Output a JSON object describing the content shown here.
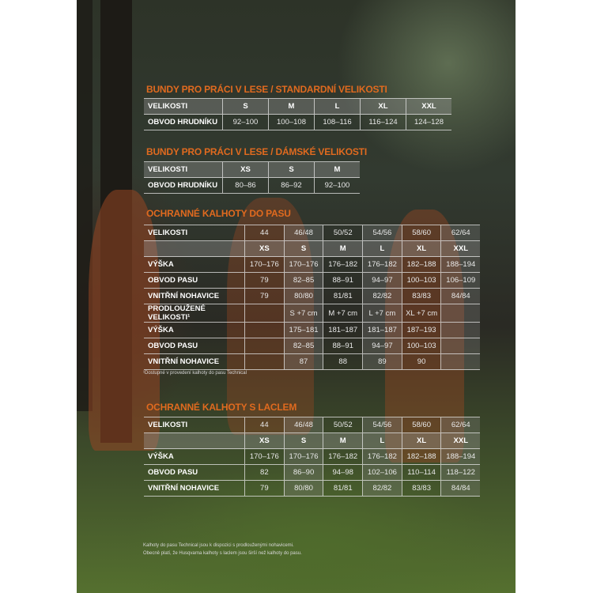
{
  "tables": [
    {
      "title": "BUNDY PRO PRÁCI V LESE / STANDARDNÍ VELIKOSTI",
      "rows": [
        [
          "VELIKOSTI",
          "S",
          "M",
          "L",
          "XL",
          "XXL"
        ],
        [
          "OBVOD HRUDNÍKU",
          "92–100",
          "100–108",
          "108–116",
          "116–124",
          "124–128"
        ]
      ]
    },
    {
      "title": "BUNDY PRO PRÁCI V LESE / DÁMSKÉ VELIKOSTI",
      "rows": [
        [
          "VELIKOSTI",
          "XS",
          "S",
          "M"
        ],
        [
          "OBVOD HRUDNÍKU",
          "80–86",
          "86–92",
          "92–100"
        ]
      ]
    },
    {
      "title": "OCHRANNÉ KALHOTY DO PASU",
      "rows": [
        [
          "VELIKOSTI",
          "44",
          "46/48",
          "50/52",
          "54/56",
          "58/60",
          "62/64"
        ],
        [
          "",
          "XS",
          "S",
          "M",
          "L",
          "XL",
          "XXL"
        ],
        [
          "VÝŠKA",
          "170–176",
          "170–176",
          "176–182",
          "176–182",
          "182–188",
          "188–194"
        ],
        [
          "OBVOD PASU",
          "79",
          "82–85",
          "88–91",
          "94–97",
          "100–103",
          "106–109"
        ],
        [
          "VNITŘNÍ NOHAVICE",
          "79",
          "80/80",
          "81/81",
          "82/82",
          "83/83",
          "84/84"
        ],
        [
          "PRODLOUŽENÉ VELIKOSTI¹",
          "",
          "S +7 cm",
          "M +7 cm",
          "L +7 cm",
          "XL +7 cm",
          ""
        ],
        [
          "VÝŠKA",
          "",
          "175–181",
          "181–187",
          "181–187",
          "187–193",
          ""
        ],
        [
          "OBVOD PASU",
          "",
          "82–85",
          "88–91",
          "94–97",
          "100–103",
          ""
        ],
        [
          "VNITŘNÍ NOHAVICE",
          "",
          "87",
          "88",
          "89",
          "90",
          ""
        ]
      ],
      "footnote": "¹Dostupné v provedení kalhoty do pasu Technical"
    },
    {
      "title": "OCHRANNÉ KALHOTY S LACLEM",
      "rows": [
        [
          "VELIKOSTI",
          "44",
          "46/48",
          "50/52",
          "54/56",
          "58/60",
          "62/64"
        ],
        [
          "",
          "XS",
          "S",
          "M",
          "L",
          "XL",
          "XXL"
        ],
        [
          "VÝŠKA",
          "170–176",
          "170–176",
          "176–182",
          "176–182",
          "182–188",
          "188–194"
        ],
        [
          "OBVOD PASU",
          "82",
          "86–90",
          "94–98",
          "102–106",
          "110–114",
          "118–122"
        ],
        [
          "VNITŘNÍ NOHAVICE",
          "79",
          "80/80",
          "81/81",
          "82/82",
          "83/83",
          "84/84"
        ]
      ]
    }
  ],
  "notes": [
    "Kalhoty do pasu Technical jsou k dispozici s prodlouženými nohavicemi.",
    "Obecně platí, že Husqvarna kalhoty s laclem jsou širší než kalhoty do pasu."
  ],
  "colors": {
    "title": "#e06a1f"
  }
}
